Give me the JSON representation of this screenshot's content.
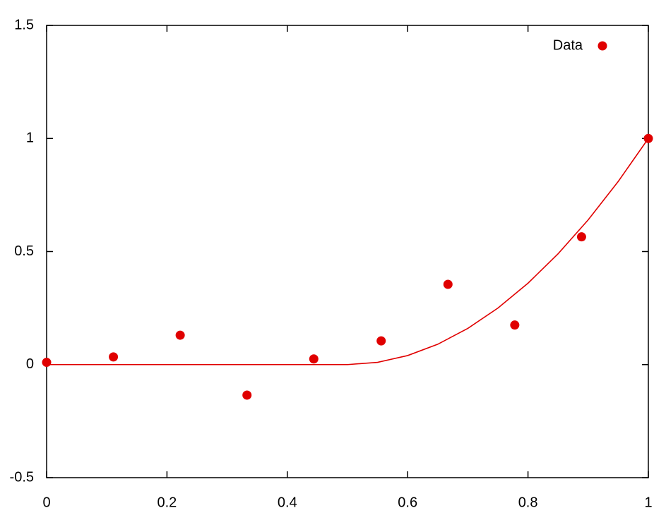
{
  "chart_data": {
    "type": "scatter",
    "series": [
      {
        "name": "Data",
        "color": "#e00000",
        "x": [
          0,
          0.111,
          0.222,
          0.333,
          0.444,
          0.556,
          0.667,
          0.778,
          0.889,
          1
        ],
        "values": [
          0.01,
          0.034,
          0.13,
          -0.135,
          0.025,
          0.105,
          0.355,
          0.175,
          0.565,
          1.0
        ]
      },
      {
        "type": "line",
        "color": "#e00000",
        "x": [
          0,
          0.5,
          0.55,
          0.6,
          0.65,
          0.7,
          0.75,
          0.8,
          0.85,
          0.9,
          0.95,
          1
        ],
        "values": [
          0,
          0,
          0.01,
          0.04,
          0.09,
          0.16,
          0.25,
          0.36,
          0.49,
          0.64,
          0.81,
          1
        ]
      }
    ],
    "xlim": [
      0,
      1
    ],
    "ylim": [
      -0.5,
      1.5
    ],
    "xticks": [
      0,
      0.2,
      0.4,
      0.6,
      0.8,
      1
    ],
    "yticks": [
      -0.5,
      0,
      0.5,
      1,
      1.5
    ],
    "legend": "top-right"
  }
}
